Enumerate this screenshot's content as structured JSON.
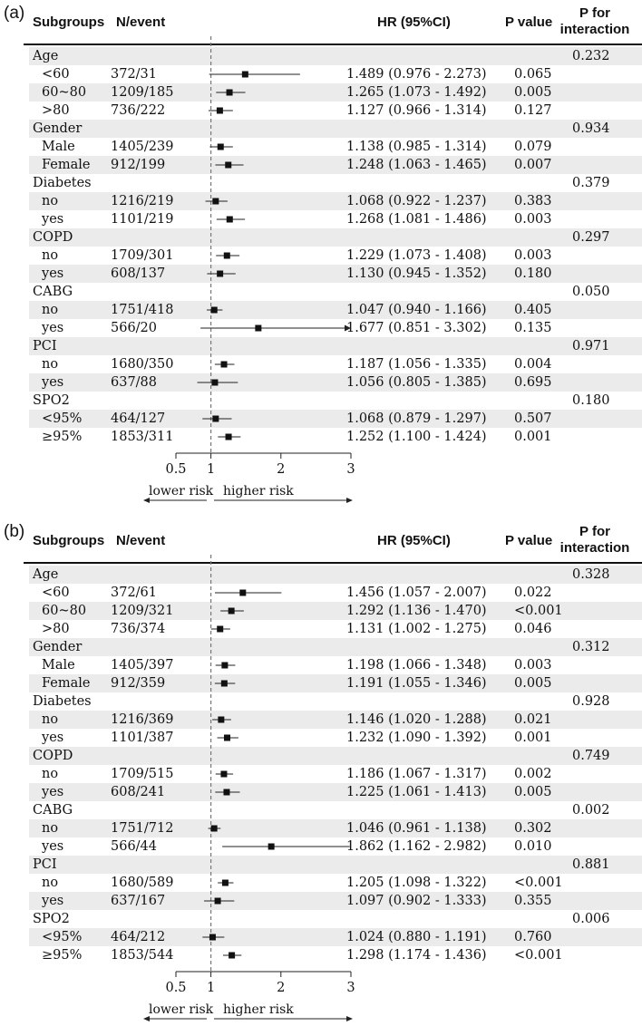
{
  "headers": {
    "subgroups": "Subgroups",
    "n_event": "N/event",
    "hr": "HR (95%CI)",
    "p_value": "P value",
    "p_interaction": "P for interaction"
  },
  "axis": {
    "ticks": [
      0.5,
      1,
      2,
      3
    ],
    "tick_labels": [
      "0.5",
      "1",
      "2",
      "3"
    ],
    "lower_label": "lower risk",
    "higher_label": "higher risk"
  },
  "chart_data": [
    {
      "type": "forest",
      "panel": "(a)",
      "xlim": [
        0.5,
        3
      ],
      "reference_line": 1,
      "rows": [
        {
          "label": "Age",
          "group": true,
          "p_interaction": "0.232"
        },
        {
          "label": "<60",
          "n_event": "372/31",
          "hr": 1.489,
          "lo": 0.976,
          "hi": 2.273,
          "hr_text": "1.489 (0.976 - 2.273)",
          "p": "0.065"
        },
        {
          "label": "60~80",
          "n_event": "1209/185",
          "hr": 1.265,
          "lo": 1.073,
          "hi": 1.492,
          "hr_text": "1.265 (1.073 - 1.492)",
          "p": "0.005"
        },
        {
          "label": ">80",
          "n_event": "736/222",
          "hr": 1.127,
          "lo": 0.966,
          "hi": 1.314,
          "hr_text": "1.127 (0.966 - 1.314)",
          "p": "0.127"
        },
        {
          "label": "Gender",
          "group": true,
          "p_interaction": "0.934"
        },
        {
          "label": "Male",
          "n_event": "1405/239",
          "hr": 1.138,
          "lo": 0.985,
          "hi": 1.314,
          "hr_text": "1.138 (0.985 - 1.314)",
          "p": "0.079"
        },
        {
          "label": "Female",
          "n_event": "912/199",
          "hr": 1.248,
          "lo": 1.063,
          "hi": 1.465,
          "hr_text": "1.248 (1.063 - 1.465)",
          "p": "0.007"
        },
        {
          "label": "Diabetes",
          "group": true,
          "p_interaction": "0.379"
        },
        {
          "label": "no",
          "n_event": "1216/219",
          "hr": 1.068,
          "lo": 0.922,
          "hi": 1.237,
          "hr_text": "1.068 (0.922 - 1.237)",
          "p": "0.383"
        },
        {
          "label": "yes",
          "n_event": "1101/219",
          "hr": 1.268,
          "lo": 1.081,
          "hi": 1.486,
          "hr_text": "1.268 (1.081 - 1.486)",
          "p": "0.003"
        },
        {
          "label": "COPD",
          "group": true,
          "p_interaction": "0.297"
        },
        {
          "label": "no",
          "n_event": "1709/301",
          "hr": 1.229,
          "lo": 1.073,
          "hi": 1.408,
          "hr_text": "1.229 (1.073 - 1.408)",
          "p": "0.003"
        },
        {
          "label": "yes",
          "n_event": "608/137",
          "hr": 1.13,
          "lo": 0.945,
          "hi": 1.352,
          "hr_text": "1.130 (0.945 - 1.352)",
          "p": "0.180"
        },
        {
          "label": "CABG",
          "group": true,
          "p_interaction": "0.050"
        },
        {
          "label": "no",
          "n_event": "1751/418",
          "hr": 1.047,
          "lo": 0.94,
          "hi": 1.166,
          "hr_text": "1.047 (0.940 - 1.166)",
          "p": "0.405"
        },
        {
          "label": "yes",
          "n_event": "566/20",
          "hr": 1.677,
          "lo": 0.851,
          "hi": 3.302,
          "hr_text": "1.677 (0.851 - 3.302)",
          "p": "0.135",
          "arrow": true
        },
        {
          "label": "PCI",
          "group": true,
          "p_interaction": "0.971"
        },
        {
          "label": "no",
          "n_event": "1680/350",
          "hr": 1.187,
          "lo": 1.056,
          "hi": 1.335,
          "hr_text": "1.187 (1.056 - 1.335)",
          "p": "0.004"
        },
        {
          "label": "yes",
          "n_event": "637/88",
          "hr": 1.056,
          "lo": 0.805,
          "hi": 1.385,
          "hr_text": "1.056 (0.805 - 1.385)",
          "p": "0.695"
        },
        {
          "label": "SPO2",
          "group": true,
          "p_interaction": "0.180"
        },
        {
          "label": "<95%",
          "n_event": "464/127",
          "hr": 1.068,
          "lo": 0.879,
          "hi": 1.297,
          "hr_text": "1.068 (0.879 - 1.297)",
          "p": "0.507"
        },
        {
          "label": "≥95%",
          "n_event": "1853/311",
          "hr": 1.252,
          "lo": 1.1,
          "hi": 1.424,
          "hr_text": "1.252 (1.100 - 1.424)",
          "p": "0.001"
        }
      ]
    },
    {
      "type": "forest",
      "panel": "(b)",
      "xlim": [
        0.5,
        3
      ],
      "reference_line": 1,
      "rows": [
        {
          "label": "Age",
          "group": true,
          "p_interaction": "0.328"
        },
        {
          "label": "<60",
          "n_event": "372/61",
          "hr": 1.456,
          "lo": 1.057,
          "hi": 2.007,
          "hr_text": "1.456 (1.057 - 2.007)",
          "p": "0.022"
        },
        {
          "label": "60~80",
          "n_event": "1209/321",
          "hr": 1.292,
          "lo": 1.136,
          "hi": 1.47,
          "hr_text": "1.292 (1.136 - 1.470)",
          "p": "<0.001"
        },
        {
          "label": ">80",
          "n_event": "736/374",
          "hr": 1.131,
          "lo": 1.002,
          "hi": 1.275,
          "hr_text": "1.131 (1.002 - 1.275)",
          "p": "0.046"
        },
        {
          "label": "Gender",
          "group": true,
          "p_interaction": "0.312"
        },
        {
          "label": "Male",
          "n_event": "1405/397",
          "hr": 1.198,
          "lo": 1.066,
          "hi": 1.348,
          "hr_text": "1.198 (1.066 - 1.348)",
          "p": "0.003"
        },
        {
          "label": "Female",
          "n_event": "912/359",
          "hr": 1.191,
          "lo": 1.055,
          "hi": 1.346,
          "hr_text": "1.191 (1.055 - 1.346)",
          "p": "0.005"
        },
        {
          "label": "Diabetes",
          "group": true,
          "p_interaction": "0.928"
        },
        {
          "label": "no",
          "n_event": "1216/369",
          "hr": 1.146,
          "lo": 1.02,
          "hi": 1.288,
          "hr_text": "1.146 (1.020 - 1.288)",
          "p": "0.021"
        },
        {
          "label": "yes",
          "n_event": "1101/387",
          "hr": 1.232,
          "lo": 1.09,
          "hi": 1.392,
          "hr_text": "1.232 (1.090 - 1.392)",
          "p": "0.001"
        },
        {
          "label": "COPD",
          "group": true,
          "p_interaction": "0.749"
        },
        {
          "label": "no",
          "n_event": "1709/515",
          "hr": 1.186,
          "lo": 1.067,
          "hi": 1.317,
          "hr_text": "1.186 (1.067 - 1.317)",
          "p": "0.002"
        },
        {
          "label": "yes",
          "n_event": "608/241",
          "hr": 1.225,
          "lo": 1.061,
          "hi": 1.413,
          "hr_text": "1.225 (1.061 - 1.413)",
          "p": "0.005"
        },
        {
          "label": "CABG",
          "group": true,
          "p_interaction": "0.002"
        },
        {
          "label": "no",
          "n_event": "1751/712",
          "hr": 1.046,
          "lo": 0.961,
          "hi": 1.138,
          "hr_text": "1.046 (0.961 - 1.138)",
          "p": "0.302"
        },
        {
          "label": "yes",
          "n_event": "566/44",
          "hr": 1.862,
          "lo": 1.162,
          "hi": 2.982,
          "hr_text": "1.862 (1.162 - 2.982)",
          "p": "0.010"
        },
        {
          "label": "PCI",
          "group": true,
          "p_interaction": "0.881"
        },
        {
          "label": "no",
          "n_event": "1680/589",
          "hr": 1.205,
          "lo": 1.098,
          "hi": 1.322,
          "hr_text": "1.205 (1.098 - 1.322)",
          "p": "<0.001"
        },
        {
          "label": "yes",
          "n_event": "637/167",
          "hr": 1.097,
          "lo": 0.902,
          "hi": 1.333,
          "hr_text": "1.097 (0.902 - 1.333)",
          "p": "0.355"
        },
        {
          "label": "SPO2",
          "group": true,
          "p_interaction": "0.006"
        },
        {
          "label": "<95%",
          "n_event": "464/212",
          "hr": 1.024,
          "lo": 0.88,
          "hi": 1.191,
          "hr_text": "1.024 (0.880 - 1.191)",
          "p": "0.760"
        },
        {
          "label": "≥95%",
          "n_event": "1853/544",
          "hr": 1.298,
          "lo": 1.174,
          "hi": 1.436,
          "hr_text": "1.298 (1.174 - 1.436)",
          "p": "<0.001"
        }
      ]
    }
  ]
}
